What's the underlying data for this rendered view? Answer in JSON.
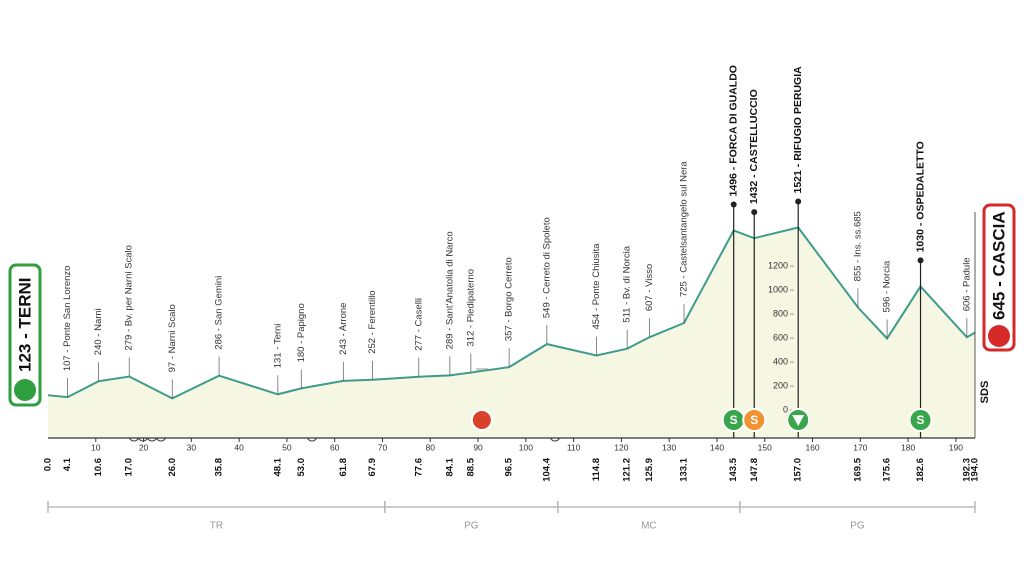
{
  "chart_data": {
    "type": "area",
    "x": [
      0.0,
      4.1,
      10.6,
      17.0,
      26.0,
      35.8,
      48.1,
      53.0,
      61.8,
      67.9,
      77.6,
      84.1,
      88.5,
      96.5,
      104.4,
      114.8,
      121.2,
      125.9,
      133.1,
      143.5,
      147.8,
      157.0,
      169.5,
      175.6,
      182.6,
      192.3,
      194.0
    ],
    "x_labels": [
      "0.0",
      "4.1",
      "10.6",
      "17.0",
      "26.0",
      "35.8",
      "48.1",
      "53.0",
      "61.8",
      "67.9",
      "77.6",
      "84.1",
      "88.5",
      "96.5",
      "104.4",
      "114.8",
      "121.2",
      "125.9",
      "133.1",
      "143.5",
      "147.8",
      "157.0",
      "169.5",
      "175.6",
      "182.6",
      "192.3",
      "194.0"
    ],
    "values": [
      123,
      107,
      240,
      279,
      97,
      286,
      131,
      180,
      243,
      252,
      277,
      289,
      312,
      357,
      549,
      454,
      511,
      607,
      725,
      1496,
      1432,
      1521,
      855,
      596,
      1030,
      606,
      645
    ],
    "value_labels": [
      "123 - TERNI",
      "107 - Ponte San Lorenzo",
      "240 - Narni",
      "279 - Bv. per Narni Scalo",
      "97 - Narni Scalo",
      "286 - San Gemini",
      "131 - Terni",
      "180 - Papigno",
      "243 - Arrone",
      "252 - Ferentillo",
      "277 - Caselli",
      "289 - Sant'Anatolia di Narco",
      "312 - Piedipaterno",
      "357 - Borgo Cerreto",
      "549 - Cerreto di Spoleto",
      "454 - Ponte Chiusita",
      "511 - Bv. di Norcia",
      "607 - Visso",
      "725 - Castelsantangelo sul Nera",
      "1496 - FORCA DI GUALDO",
      "1432 - CASTELLUCCIO",
      "1521 - RIFUGIO PERUGIA",
      "855 - Ins. ss.685",
      "596 - Norcia",
      "1030 - OSPEDALETTO",
      "606 - Padule",
      "645 - CASCIA"
    ],
    "emphasis": [
      true,
      false,
      false,
      false,
      false,
      false,
      false,
      false,
      false,
      false,
      false,
      false,
      false,
      false,
      false,
      false,
      false,
      false,
      false,
      true,
      true,
      true,
      false,
      false,
      true,
      false,
      true
    ],
    "xlim": [
      0,
      194
    ],
    "xticks": [
      10,
      20,
      30,
      40,
      50,
      60,
      70,
      80,
      90,
      100,
      110,
      120,
      130,
      140,
      150,
      160,
      170,
      180,
      190
    ],
    "ylim": [
      0,
      1600
    ],
    "yticks": [
      0,
      200,
      400,
      600,
      800,
      1000,
      1200
    ],
    "color": "#3f9c8c",
    "fill": "#f5f7e2",
    "start_color": "#2e9e3e",
    "finish_color": "#d62a2a",
    "regions": [
      {
        "label": "TR",
        "from": 0,
        "to": 70.5
      },
      {
        "label": "PG",
        "from": 70.5,
        "to": 106.7
      },
      {
        "label": "MC",
        "from": 106.7,
        "to": 144.8
      },
      {
        "label": "PG",
        "from": 144.8,
        "to": 194
      }
    ],
    "icons": [
      {
        "km": 143.5,
        "label": "S",
        "color": "#3aa64b"
      },
      {
        "km": 147.8,
        "label": "S",
        "color": "#f0922e"
      },
      {
        "km": 157.0,
        "color": "#3aa64b"
      },
      {
        "km": 182.6,
        "label": "S",
        "color": "#3aa64b"
      }
    ],
    "logo": "SDS"
  }
}
